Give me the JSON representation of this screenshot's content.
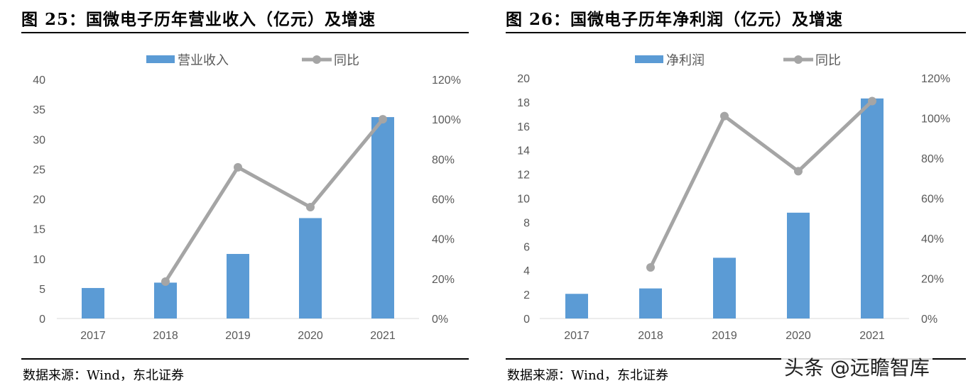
{
  "chart_data": [
    {
      "type": "bar+line",
      "title": "图 25：国微电子历年营业收入（亿元）及增速",
      "categories": [
        "2017",
        "2018",
        "2019",
        "2020",
        "2021"
      ],
      "series": [
        {
          "name": "营业收入",
          "type": "bar",
          "axis": "left",
          "color": "#5B9BD5",
          "values": [
            5.1,
            6.0,
            10.8,
            16.8,
            33.7
          ]
        },
        {
          "name": "同比",
          "type": "line",
          "axis": "right",
          "color": "#A5A5A5",
          "values": [
            null,
            18.5,
            75.9,
            55.9,
            100.0
          ]
        }
      ],
      "ylim": [
        0,
        40
      ],
      "yticks": [
        "0",
        "5",
        "10",
        "15",
        "20",
        "25",
        "30",
        "35",
        "40"
      ],
      "y2lim": [
        0,
        120
      ],
      "y2ticks": [
        "0%",
        "20%",
        "40%",
        "60%",
        "80%",
        "100%",
        "120%"
      ],
      "legend": "top",
      "grid": false,
      "source": "数据来源：Wind，东北证券"
    },
    {
      "type": "bar+line",
      "title": "图 26：国微电子历年净利润（亿元）及增速",
      "categories": [
        "2017",
        "2018",
        "2019",
        "2020",
        "2021"
      ],
      "series": [
        {
          "name": "净利润",
          "type": "bar",
          "axis": "left",
          "color": "#5B9BD5",
          "values": [
            2.05,
            2.5,
            5.05,
            8.8,
            18.3
          ]
        },
        {
          "name": "同比",
          "type": "line",
          "axis": "right",
          "color": "#A5A5A5",
          "values": [
            null,
            25.5,
            101.0,
            73.5,
            108.5
          ]
        }
      ],
      "ylim": [
        0,
        20
      ],
      "yticks": [
        "0",
        "2",
        "4",
        "6",
        "8",
        "10",
        "12",
        "14",
        "16",
        "18",
        "20"
      ],
      "y2lim": [
        0,
        120
      ],
      "y2ticks": [
        "0%",
        "20%",
        "40%",
        "60%",
        "80%",
        "100%",
        "120%"
      ],
      "legend": "top",
      "grid": false,
      "source": "数据来源：Wind，东北证券"
    }
  ],
  "watermark": "头条 @远瞻智库"
}
